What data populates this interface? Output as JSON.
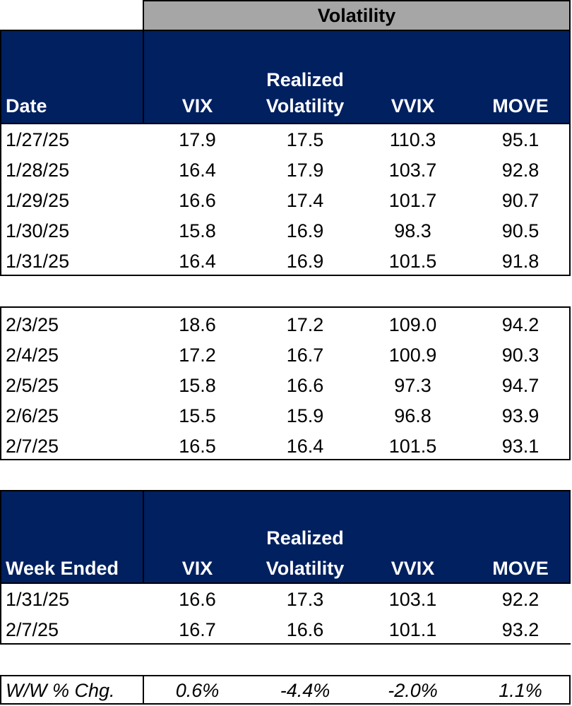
{
  "title": "Volatility",
  "header1": {
    "date": "Date",
    "vix": "VIX",
    "rv_line1": "Realized",
    "rv_line2": "Volatility",
    "vvix": "VVIX",
    "move": "MOVE"
  },
  "week1": [
    {
      "date": "1/27/25",
      "vix": "17.9",
      "rv": "17.5",
      "vvix": "110.3",
      "move": "95.1"
    },
    {
      "date": "1/28/25",
      "vix": "16.4",
      "rv": "17.9",
      "vvix": "103.7",
      "move": "92.8"
    },
    {
      "date": "1/29/25",
      "vix": "16.6",
      "rv": "17.4",
      "vvix": "101.7",
      "move": "90.7"
    },
    {
      "date": "1/30/25",
      "vix": "15.8",
      "rv": "16.9",
      "vvix": "98.3",
      "move": "90.5"
    },
    {
      "date": "1/31/25",
      "vix": "16.4",
      "rv": "16.9",
      "vvix": "101.5",
      "move": "91.8"
    }
  ],
  "week2": [
    {
      "date": "2/3/25",
      "vix": "18.6",
      "rv": "17.2",
      "vvix": "109.0",
      "move": "94.2"
    },
    {
      "date": "2/4/25",
      "vix": "17.2",
      "rv": "16.7",
      "vvix": "100.9",
      "move": "90.3"
    },
    {
      "date": "2/5/25",
      "vix": "15.8",
      "rv": "16.6",
      "vvix": "97.3",
      "move": "94.7"
    },
    {
      "date": "2/6/25",
      "vix": "15.5",
      "rv": "15.9",
      "vvix": "96.8",
      "move": "93.9"
    },
    {
      "date": "2/7/25",
      "vix": "16.5",
      "rv": "16.4",
      "vvix": "101.5",
      "move": "93.1"
    }
  ],
  "header2": {
    "date": "Week Ended",
    "vix": "VIX",
    "rv_line1": "Realized",
    "rv_line2": "Volatility",
    "vvix": "VVIX",
    "move": "MOVE"
  },
  "weekly": [
    {
      "date": "1/31/25",
      "vix": "16.6",
      "rv": "17.3",
      "vvix": "103.1",
      "move": "92.2"
    },
    {
      "date": "2/7/25",
      "vix": "16.7",
      "rv": "16.6",
      "vvix": "101.1",
      "move": "93.2"
    }
  ],
  "change": {
    "label": "W/W % Chg.",
    "vix": "0.6%",
    "rv": "-4.4%",
    "vvix": "-2.0%",
    "move": "1.1%"
  }
}
